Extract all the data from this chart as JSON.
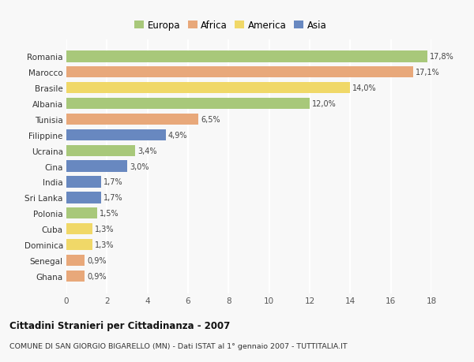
{
  "countries": [
    "Romania",
    "Marocco",
    "Brasile",
    "Albania",
    "Tunisia",
    "Filippine",
    "Ucraina",
    "Cina",
    "India",
    "Sri Lanka",
    "Polonia",
    "Cuba",
    "Dominica",
    "Senegal",
    "Ghana"
  ],
  "values": [
    17.8,
    17.1,
    14.0,
    12.0,
    6.5,
    4.9,
    3.4,
    3.0,
    1.7,
    1.7,
    1.5,
    1.3,
    1.3,
    0.9,
    0.9
  ],
  "labels": [
    "17,8%",
    "17,1%",
    "14,0%",
    "12,0%",
    "6,5%",
    "4,9%",
    "3,4%",
    "3,0%",
    "1,7%",
    "1,7%",
    "1,5%",
    "1,3%",
    "1,3%",
    "0,9%",
    "0,9%"
  ],
  "continents": [
    "Europa",
    "Africa",
    "America",
    "Europa",
    "Africa",
    "Asia",
    "Europa",
    "Asia",
    "Asia",
    "Asia",
    "Europa",
    "America",
    "America",
    "Africa",
    "Africa"
  ],
  "continent_colors": {
    "Europa": "#a8c87a",
    "Africa": "#e8a87a",
    "America": "#f0d868",
    "Asia": "#6888c0"
  },
  "legend_order": [
    "Europa",
    "Africa",
    "America",
    "Asia"
  ],
  "title": "Cittadini Stranieri per Cittadinanza - 2007",
  "subtitle": "COMUNE DI SAN GIORGIO BIGARELLO (MN) - Dati ISTAT al 1° gennaio 2007 - TUTTITALIA.IT",
  "xlim": [
    0,
    18
  ],
  "xticks": [
    0,
    2,
    4,
    6,
    8,
    10,
    12,
    14,
    16,
    18
  ],
  "background_color": "#f8f8f8",
  "grid_color": "#ffffff",
  "bar_height": 0.72
}
